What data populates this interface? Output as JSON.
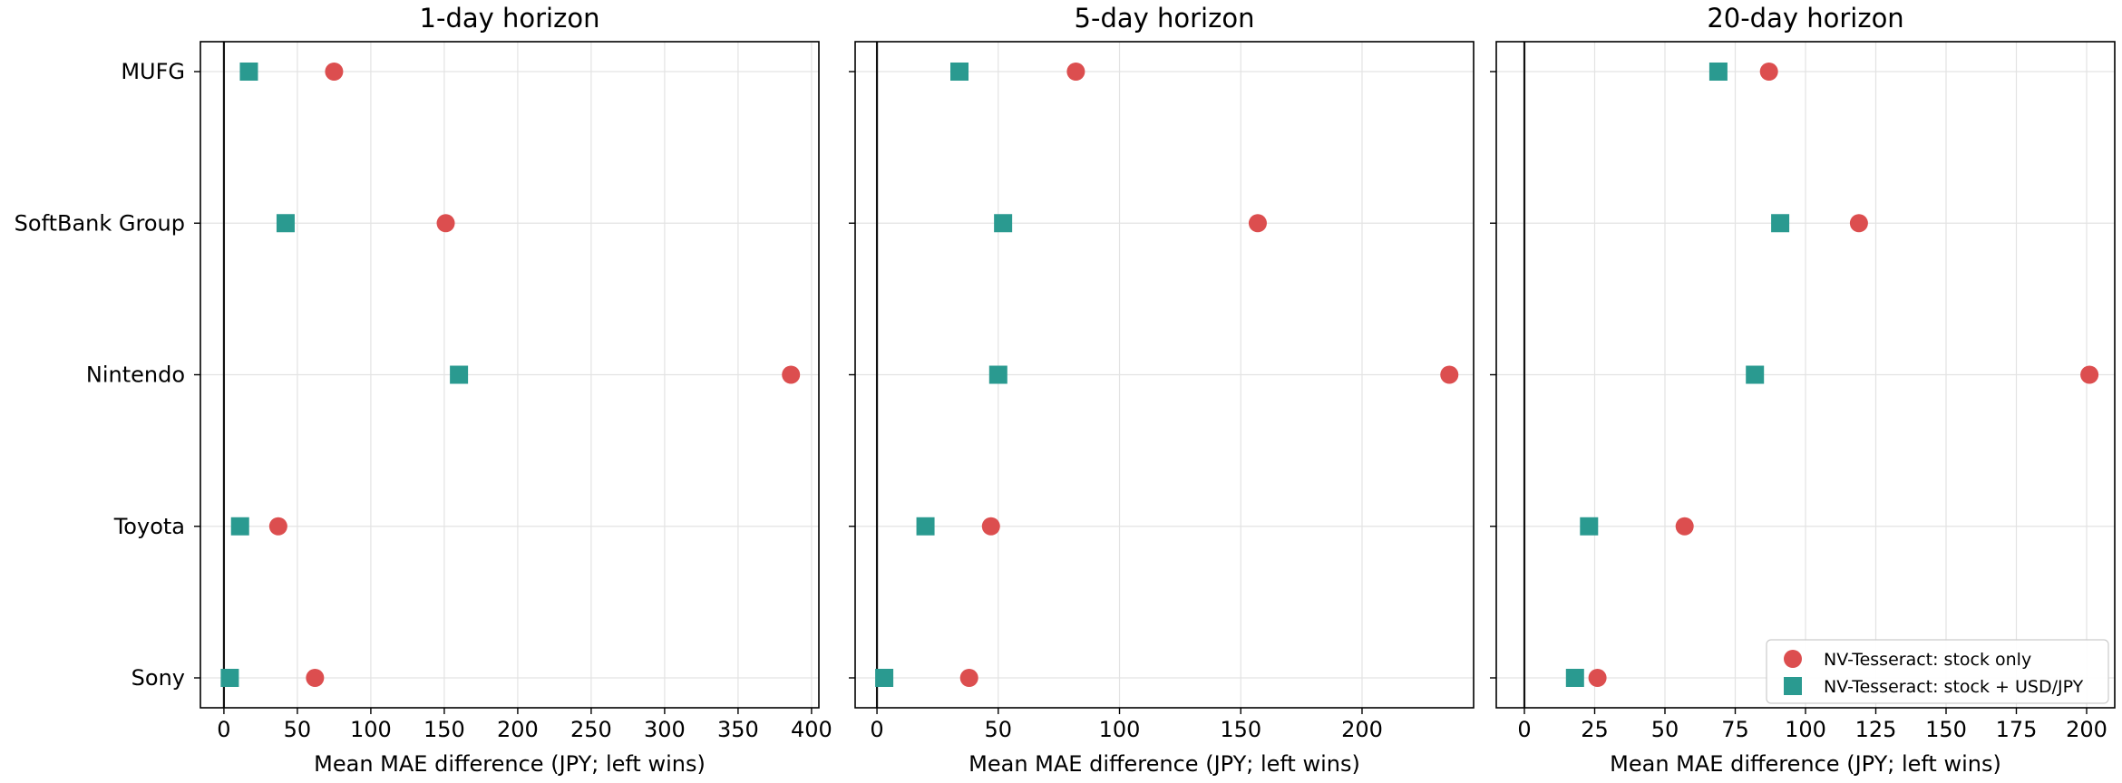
{
  "chart_data": {
    "type": "scatter",
    "categories": [
      "Sony",
      "Toyota",
      "Nintendo",
      "SoftBank Group",
      "MUFG"
    ],
    "colors": {
      "stock_only": "#dc4e4f",
      "stock_fx": "#2a9a90"
    },
    "marker_shapes": {
      "stock_only": "circle",
      "stock_fx": "square"
    },
    "legend": {
      "location": "lower right of the 20-day panel",
      "entries": [
        "NV-Tesseract: stock only",
        "NV-Tesseract: stock + USD/JPY"
      ]
    },
    "grid": true,
    "reference_line_x": 0,
    "panels": [
      {
        "title": "1-day horizon",
        "xlabel": "Mean MAE difference (JPY; left wins)",
        "xlim": [
          -16,
          405
        ],
        "xticks": [
          0,
          50,
          100,
          150,
          200,
          250,
          300,
          350,
          400
        ],
        "series": [
          {
            "name": "NV-Tesseract: stock only",
            "values": [
              62,
              37,
              386,
              151,
              75
            ]
          },
          {
            "name": "NV-Tesseract: stock + USD/JPY",
            "values": [
              4,
              11,
              160,
              42,
              17
            ]
          }
        ]
      },
      {
        "title": "5-day horizon",
        "xlabel": "Mean MAE difference (JPY; left wins)",
        "xlim": [
          -9,
          246
        ],
        "xticks": [
          0,
          50,
          100,
          150,
          200
        ],
        "series": [
          {
            "name": "NV-Tesseract: stock only",
            "values": [
              38,
              47,
              236,
              157,
              82
            ]
          },
          {
            "name": "NV-Tesseract: stock + USD/JPY",
            "values": [
              3,
              20,
              50,
              52,
              34
            ]
          }
        ]
      },
      {
        "title": "20-day horizon",
        "xlabel": "Mean MAE difference (JPY; left wins)",
        "xlim": [
          -10,
          210
        ],
        "xticks": [
          0,
          25,
          50,
          75,
          100,
          125,
          150,
          175,
          200
        ],
        "series": [
          {
            "name": "NV-Tesseract: stock only",
            "values": [
              26,
              57,
              201,
              119,
              87
            ]
          },
          {
            "name": "NV-Tesseract: stock + USD/JPY",
            "values": [
              18,
              23,
              82,
              91,
              69
            ]
          }
        ]
      }
    ]
  }
}
